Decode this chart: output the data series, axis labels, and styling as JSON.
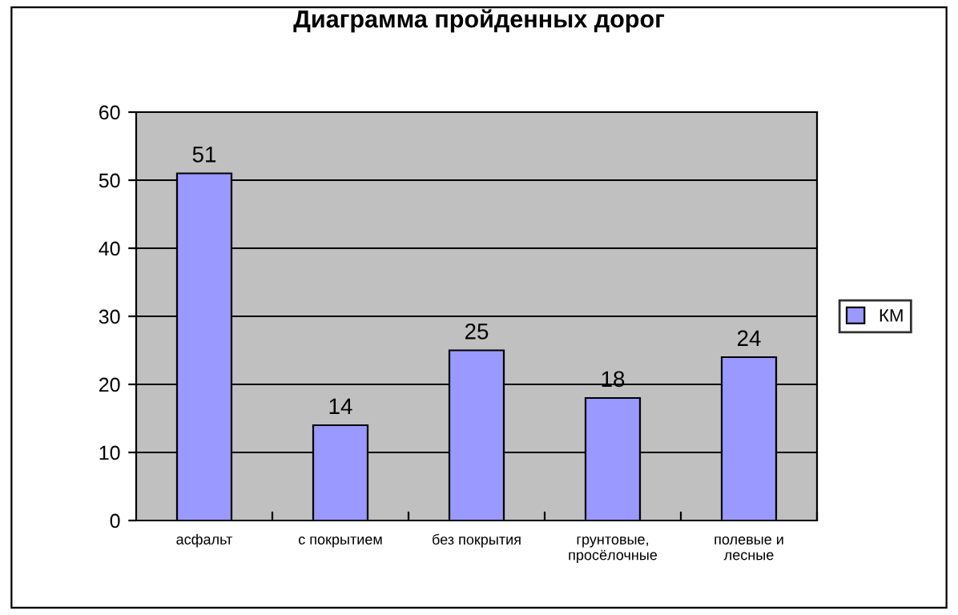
{
  "chart_data": {
    "type": "bar",
    "title": "Диаграмма пройденных дорог",
    "categories": [
      "асфальт",
      "с покрытием",
      "без покрытия",
      "грунтовые,\nпросёлочные",
      "полевые и\nлесные"
    ],
    "series": [
      {
        "name": "КМ",
        "color": "#9999ff",
        "values": [
          51,
          14,
          25,
          18,
          24
        ]
      }
    ],
    "ylim": [
      0,
      60
    ],
    "yticks": [
      0,
      10,
      20,
      30,
      40,
      50,
      60
    ],
    "grid": "y",
    "legend": "right",
    "data_labels": true
  }
}
